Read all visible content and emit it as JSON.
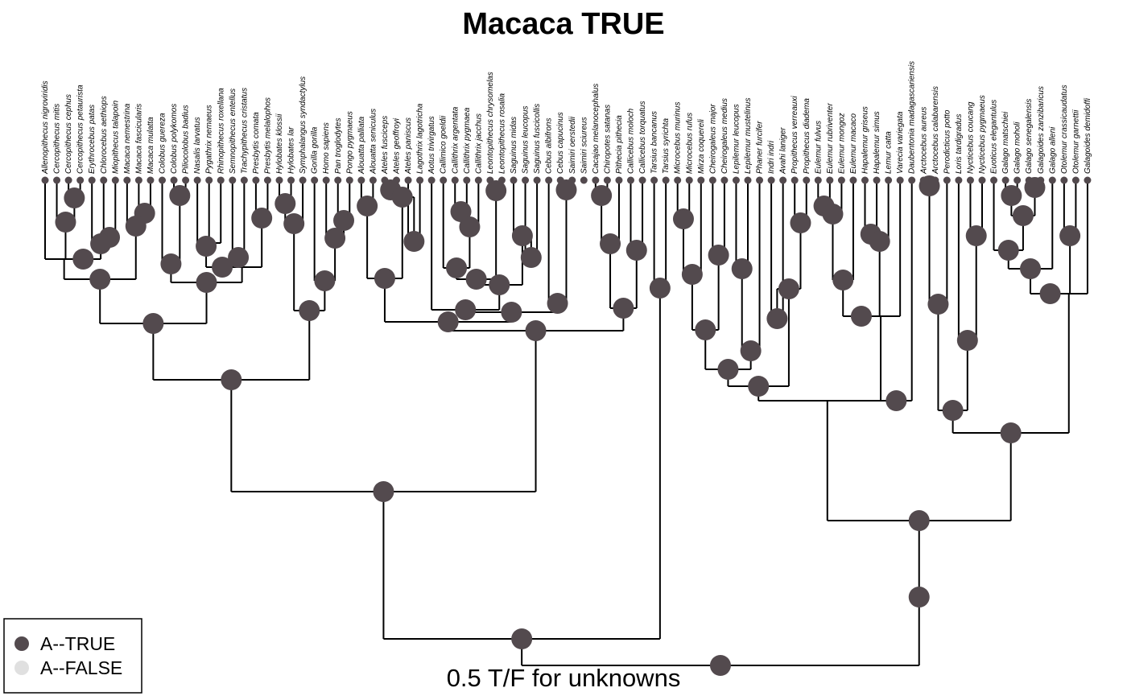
{
  "title": "Macaca TRUE",
  "subtitle": "0.5 T/F for unknowns",
  "legend": [
    {
      "label": "A--TRUE",
      "color": "#534a4e"
    },
    {
      "label": "A--FALSE",
      "color": "#e0e0e0"
    }
  ],
  "colors": {
    "state_true": "#534a4e",
    "branch": "#000000"
  },
  "taxa": [
    "Allenopithecus nigroviridis",
    "Cercopithecus mitis",
    "Cercopithecus cephus",
    "Cercopithecus petaurista",
    "Erythrocebus patas",
    "Chlorocebus aethiops",
    "Miopithecus talapoin",
    "Macaca nemestrina",
    "Macaca fascicularis",
    "Macaca mulatta",
    "Colobus guereza",
    "Colobus polykomos",
    "Piliocolobus badius",
    "Nasalis larvatus",
    "Pygathrix nemaeus",
    "Rhinopithecus roxellana",
    "Semnopithecus entellus",
    "Trachypithecus cristatus",
    "Presbytis comata",
    "Presbytis melalophos",
    "Hylobates klossii",
    "Hylobates lar",
    "Symphalangus syndactylus",
    "Gorilla gorilla",
    "Homo sapiens",
    "Pan troglodytes",
    "Pongo pygmaeus",
    "Alouatta palliata",
    "Alouatta seniculus",
    "Ateles fusciceps",
    "Ateles geoffroyi",
    "Ateles paniscus",
    "Lagothrix lagotricha",
    "Aotus trivirgatus",
    "Callimico goeldii",
    "Callithrix argentata",
    "Callithrix pygmaea",
    "Callithrix jacchus",
    "Leontopithecus chrysomelas",
    "Leontopithecus rosalia",
    "Saguinus midas",
    "Saguinus leucopus",
    "Saguinus fuscicollis",
    "Cebus albifrons",
    "Cebus capucinus",
    "Saimiri oerstedii",
    "Saimiri sciureus",
    "Cacajao melanocephalus",
    "Chiropotes satanas",
    "Pithecia pithecia",
    "Callicebus moloch",
    "Callicebus torquatus",
    "Tarsius bancanus",
    "Tarsius syrichta",
    "Microcebus murinus",
    "Microcebus rufus",
    "Mirza coquereli",
    "Cheirogaleus major",
    "Cheirogaleus medius",
    "Lepilemur leucopus",
    "Lepilemur mustelinus",
    "Phaner furcifer",
    "Indri indri",
    "Avahi laniger",
    "Propithecus verreauxi",
    "Propithecus diadema",
    "Eulemur fulvus",
    "Eulemur rubriventer",
    "Eulemur mongoz",
    "Eulemur macaco",
    "Hapalemur griseus",
    "Hapalemur simus",
    "Lemur catta",
    "Varecia variegata",
    "Daubentonia madagascariensis",
    "Arctocebus aureus",
    "Arctocebus calabarensis",
    "Perodicticus potto",
    "Loris tardigradus",
    "Nycticebus coucang",
    "Nycticebus pygmaeus",
    "Euoticus elegantulus",
    "Galago matschiei",
    "Galago moholi",
    "Galago senegalensis",
    "Galagoides zanzibaricus",
    "Galago alleni",
    "Otolemur crassicaudatus",
    "Otolemur garnettii",
    "Galagoides demidoffi"
  ]
}
